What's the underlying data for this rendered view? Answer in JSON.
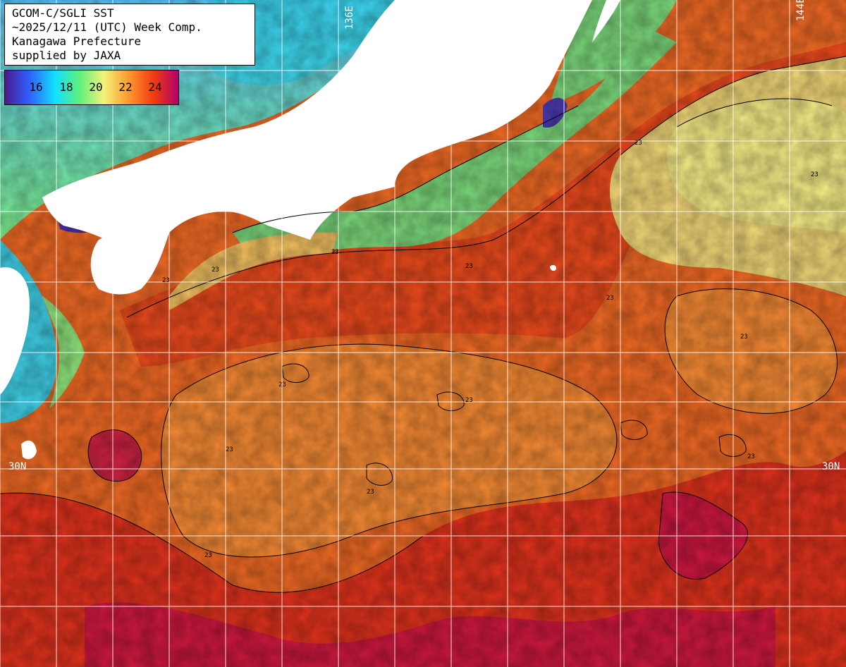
{
  "header": {
    "line1": "GCOM-C/SGLI SST",
    "line2": "~2025/12/11 (UTC) Week Comp.",
    "line3": "Kanagawa Prefecture",
    "line4": "supplied by JAXA"
  },
  "legend": {
    "ticks": [
      "16",
      "18",
      "20",
      "22",
      "24"
    ],
    "colors": [
      "#4b1a8e",
      "#2f5fff",
      "#12e0ff",
      "#5ef07a",
      "#f3f37a",
      "#ff9a30",
      "#f03a10",
      "#b0006a"
    ]
  },
  "grid_labels": {
    "lon_left": "136E",
    "lon_right": "144E",
    "lat_left": "30N",
    "lat_right": "30N"
  },
  "contour_labels": [
    "23",
    "23",
    "23",
    "23",
    "23",
    "23",
    "23",
    "23",
    "23",
    "23",
    "23",
    "23",
    "23",
    "23"
  ],
  "colors": {
    "land": "#ffffff",
    "grid": "#ffffff",
    "contour": "#000000"
  }
}
